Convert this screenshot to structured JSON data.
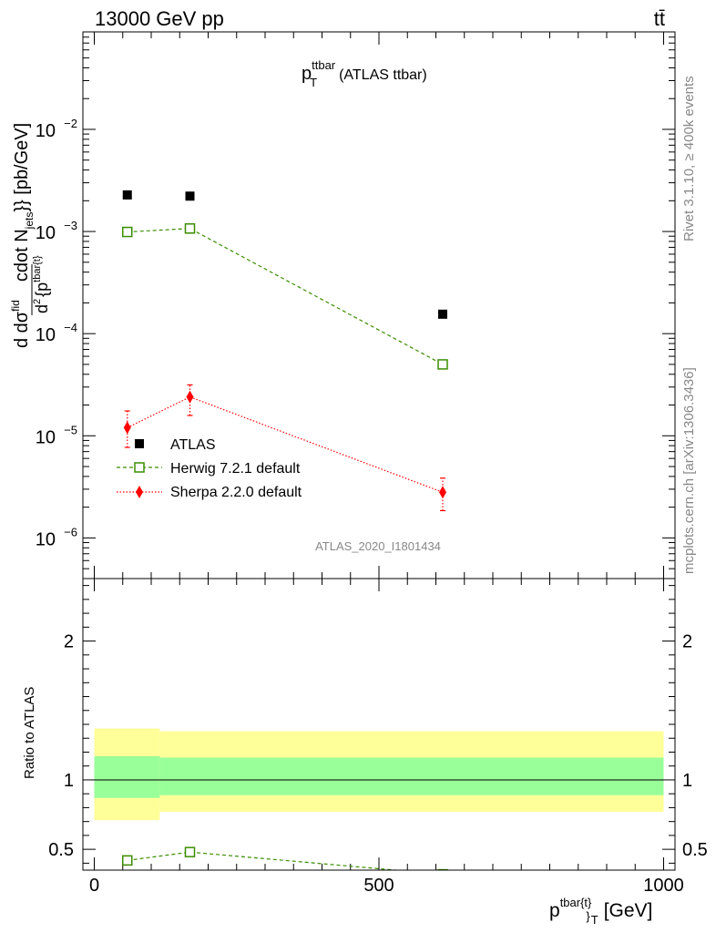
{
  "header": {
    "collision": "13000 GeV pp",
    "process": "tt̄"
  },
  "side_labels": {
    "rivet": "Rivet 3.1.10, ≥ 400k events",
    "source": "mcplots.cern.ch [arXiv:1306.3436]"
  },
  "watermark": "ATLAS_2020_I1801434",
  "chart_data": [
    {
      "type": "scatter",
      "panel": "main",
      "title": {
        "main": "p",
        "sup": "ttbar",
        "sub": "T",
        "suffix": "(ATLAS ttbar)"
      },
      "ylabel": "d d²σ^fid / d² {p^tbar{t}} cdot N_jets}} [pb/GeV]",
      "ylabel_parts": {
        "numer": "d d",
        "sig": "σ",
        "fid": "fid",
        "denom": "d",
        "p": "{p",
        "tbar": "tbar{t}",
        "tail": "cdot N",
        "jets": "jets",
        "unit": "}} [pb/GeV]"
      },
      "y_scale": "log",
      "ylim": [
        4e-07,
        0.09
      ],
      "xlim": [
        -20,
        1020
      ],
      "ytick_labels": [
        {
          "value": 1e-06,
          "base": "10",
          "exp": "−6"
        },
        {
          "value": 1e-05,
          "base": "10",
          "exp": "−5"
        },
        {
          "value": 0.0001,
          "base": "10",
          "exp": "−4"
        },
        {
          "value": 0.001,
          "base": "10",
          "exp": "−3"
        },
        {
          "value": 0.01,
          "base": "10",
          "exp": "−2"
        }
      ],
      "legend_position": "lower-left",
      "series": [
        {
          "name": "ATLAS",
          "color": "#000000",
          "marker": "filled-square",
          "x": [
            58,
            168,
            612
          ],
          "y": [
            0.00228,
            0.00222,
            0.000155
          ]
        },
        {
          "name": "Herwig 7.2.1 default",
          "color": "#3a8e00",
          "marker": "open-square",
          "line": "dashed",
          "x": [
            58,
            168,
            612
          ],
          "y": [
            0.00099,
            0.00107,
            5e-05
          ]
        },
        {
          "name": "Sherpa 2.2.0 default",
          "color": "#ff0000",
          "marker": "diamond",
          "line": "dotted",
          "x": [
            58,
            168,
            612
          ],
          "y": [
            1.2e-05,
            2.4e-05,
            2.8e-06
          ],
          "yerr_low": [
            7.7e-06,
            1.58e-05,
            1.85e-06
          ],
          "yerr_high": [
            1.75e-05,
            3.15e-05,
            3.85e-06
          ]
        }
      ]
    },
    {
      "type": "line",
      "panel": "ratio",
      "ylabel": "Ratio to ATLAS",
      "xlabel": "p^tbar{t}}_T [GeV]",
      "xlabel_parts": {
        "p": "p",
        "sup": "tbar{t}",
        "sub": "}",
        "T": "T",
        "unit": "[GeV]"
      },
      "xlim": [
        -20,
        1020
      ],
      "ylim": [
        0.35,
        2.45
      ],
      "xtick_labels": [
        "0",
        "500",
        "1000"
      ],
      "xtick_values": [
        0,
        500,
        1000
      ],
      "ytick_labels": [
        "0.5",
        "1",
        "2"
      ],
      "ytick_values": [
        0.5,
        1,
        2
      ],
      "bands": {
        "stat_syst_outer": {
          "color": "#ffff99",
          "bins": [
            [
              0,
              115,
              0.71,
              1.37
            ],
            [
              115,
              1000,
              0.77,
              1.35
            ]
          ]
        },
        "stat_inner": {
          "color": "#99ff99",
          "bins": [
            [
              0,
              115,
              0.87,
              1.17
            ],
            [
              115,
              1000,
              0.89,
              1.16
            ]
          ]
        }
      },
      "reference_line": 1,
      "series": [
        {
          "name": "Herwig 7.2.1 default",
          "color": "#3a8e00",
          "marker": "open-square",
          "line": "dashed",
          "x": [
            58,
            168,
            612
          ],
          "y": [
            0.42,
            0.48,
            0.32
          ]
        }
      ]
    }
  ]
}
